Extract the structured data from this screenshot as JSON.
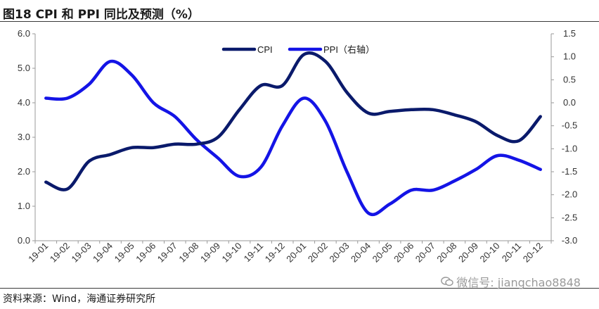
{
  "title": "图18 CPI 和 PPI 同比及预测（%）",
  "source": "资料来源：Wind，海通证券研究所",
  "watermark": {
    "text": "微信号: jiangchao8848",
    "icon": "wechat-icon"
  },
  "colors": {
    "cpi": "#0a1a6b",
    "ppi": "#1414e6",
    "axis": "#9a9a9a",
    "text": "#333333"
  },
  "chart_data": {
    "type": "line",
    "title": "图18 CPI 和 PPI 同比及预测（%）",
    "grid": false,
    "legend_position": "top-center",
    "categories": [
      "19-01",
      "19-02",
      "19-03",
      "19-04",
      "19-05",
      "19-06",
      "19-07",
      "19-08",
      "19-09",
      "19-10",
      "19-11",
      "19-12",
      "20-01",
      "20-02",
      "20-03",
      "20-04",
      "20-05",
      "20-06",
      "20-07",
      "20-08",
      "20-09",
      "20-10",
      "20-11",
      "20-12"
    ],
    "left_axis": {
      "min": 0,
      "max": 6,
      "step": 1,
      "tick_labels": [
        "0.0",
        "1.0",
        "2.0",
        "3.0",
        "4.0",
        "5.0",
        "6.0"
      ]
    },
    "right_axis": {
      "min": -3,
      "max": 1.5,
      "step": 0.5,
      "tick_labels": [
        "-3.0",
        "-2.5",
        "-2.0",
        "-1.5",
        "-1.0",
        "-0.5",
        "0.0",
        "0.5",
        "1.0",
        "1.5"
      ]
    },
    "series": [
      {
        "name": "CPI",
        "axis": "left",
        "values": [
          1.7,
          1.5,
          2.3,
          2.5,
          2.7,
          2.7,
          2.8,
          2.8,
          3.0,
          3.8,
          4.5,
          4.5,
          5.4,
          5.2,
          4.3,
          3.7,
          3.75,
          3.8,
          3.8,
          3.65,
          3.45,
          3.05,
          2.9,
          3.6
        ]
      },
      {
        "name": "PPI（右轴）",
        "axis": "right",
        "values": [
          0.1,
          0.1,
          0.4,
          0.9,
          0.6,
          0.0,
          -0.3,
          -0.8,
          -1.2,
          -1.6,
          -1.4,
          -0.5,
          0.1,
          -0.4,
          -1.5,
          -2.4,
          -2.2,
          -1.9,
          -1.9,
          -1.7,
          -1.45,
          -1.15,
          -1.25,
          -1.45
        ]
      }
    ]
  }
}
